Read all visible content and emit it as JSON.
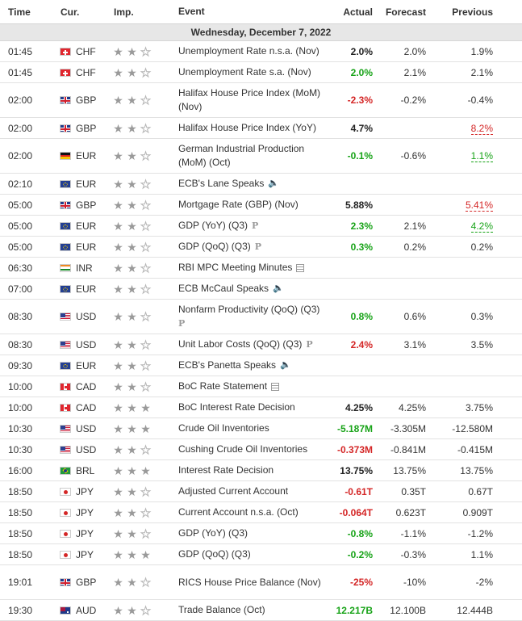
{
  "header": {
    "time": "Time",
    "currency": "Cur.",
    "importance": "Imp.",
    "event": "Event",
    "actual": "Actual",
    "forecast": "Forecast",
    "previous": "Previous"
  },
  "date_label": "Wednesday, December 7, 2022",
  "colors": {
    "positive": "#18a318",
    "negative": "#d42626",
    "date_band": "#e7e7e7"
  },
  "rows": [
    {
      "time": "01:45",
      "flag": "ch",
      "cur": "CHF",
      "stars": 2,
      "event": "Unemployment Rate n.s.a. (Nov)",
      "icon": "",
      "actual": "2.0%",
      "actual_color": "black",
      "forecast": "2.0%",
      "previous": "1.9%",
      "prev_style": "",
      "tall": false
    },
    {
      "time": "01:45",
      "flag": "ch",
      "cur": "CHF",
      "stars": 2,
      "event": "Unemployment Rate s.a. (Nov)",
      "icon": "",
      "actual": "2.0%",
      "actual_color": "green",
      "forecast": "2.1%",
      "previous": "2.1%",
      "prev_style": "",
      "tall": false
    },
    {
      "time": "02:00",
      "flag": "gb",
      "cur": "GBP",
      "stars": 2,
      "event": "Halifax House Price Index (MoM) (Nov)",
      "icon": "",
      "actual": "-2.3%",
      "actual_color": "red",
      "forecast": "-0.2%",
      "previous": "-0.4%",
      "prev_style": "",
      "tall": true
    },
    {
      "time": "02:00",
      "flag": "gb",
      "cur": "GBP",
      "stars": 2,
      "event": "Halifax House Price Index (YoY)",
      "icon": "",
      "actual": "4.7%",
      "actual_color": "black",
      "forecast": "",
      "previous": "8.2%",
      "prev_style": "red",
      "tall": false
    },
    {
      "time": "02:00",
      "flag": "de",
      "cur": "EUR",
      "stars": 2,
      "event": "German Industrial Production (MoM) (Oct)",
      "icon": "",
      "actual": "-0.1%",
      "actual_color": "green",
      "forecast": "-0.6%",
      "previous": "1.1%",
      "prev_style": "green",
      "tall": true
    },
    {
      "time": "02:10",
      "flag": "eu",
      "cur": "EUR",
      "stars": 2,
      "event": "ECB's Lane Speaks",
      "icon": "speaker",
      "actual": "",
      "actual_color": "black",
      "forecast": "",
      "previous": "",
      "prev_style": "",
      "tall": false
    },
    {
      "time": "05:00",
      "flag": "gb",
      "cur": "GBP",
      "stars": 2,
      "event": "Mortgage Rate (GBP) (Nov)",
      "icon": "",
      "actual": "5.88%",
      "actual_color": "black",
      "forecast": "",
      "previous": "5.41%",
      "prev_style": "red",
      "tall": false
    },
    {
      "time": "05:00",
      "flag": "eu",
      "cur": "EUR",
      "stars": 2,
      "event": "GDP (YoY) (Q3)",
      "icon": "p",
      "actual": "2.3%",
      "actual_color": "green",
      "forecast": "2.1%",
      "previous": "4.2%",
      "prev_style": "green",
      "tall": false
    },
    {
      "time": "05:00",
      "flag": "eu",
      "cur": "EUR",
      "stars": 2,
      "event": "GDP (QoQ) (Q3)",
      "icon": "p",
      "actual": "0.3%",
      "actual_color": "green",
      "forecast": "0.2%",
      "previous": "0.2%",
      "prev_style": "",
      "tall": false
    },
    {
      "time": "06:30",
      "flag": "in",
      "cur": "INR",
      "stars": 2,
      "event": "RBI MPC Meeting Minutes",
      "icon": "doc",
      "actual": "",
      "actual_color": "black",
      "forecast": "",
      "previous": "",
      "prev_style": "",
      "tall": false
    },
    {
      "time": "07:00",
      "flag": "eu",
      "cur": "EUR",
      "stars": 2,
      "event": "ECB McCaul Speaks",
      "icon": "speaker",
      "actual": "",
      "actual_color": "black",
      "forecast": "",
      "previous": "",
      "prev_style": "",
      "tall": false
    },
    {
      "time": "08:30",
      "flag": "us",
      "cur": "USD",
      "stars": 2,
      "event": "Nonfarm Productivity (QoQ) (Q3)",
      "icon": "p",
      "actual": "0.8%",
      "actual_color": "green",
      "forecast": "0.6%",
      "previous": "0.3%",
      "prev_style": "",
      "tall": true
    },
    {
      "time": "08:30",
      "flag": "us",
      "cur": "USD",
      "stars": 2,
      "event": "Unit Labor Costs (QoQ) (Q3)",
      "icon": "p",
      "actual": "2.4%",
      "actual_color": "red",
      "forecast": "3.1%",
      "previous": "3.5%",
      "prev_style": "",
      "tall": false
    },
    {
      "time": "09:30",
      "flag": "eu",
      "cur": "EUR",
      "stars": 2,
      "event": "ECB's Panetta Speaks",
      "icon": "speaker",
      "actual": "",
      "actual_color": "black",
      "forecast": "",
      "previous": "",
      "prev_style": "",
      "tall": false
    },
    {
      "time": "10:00",
      "flag": "ca",
      "cur": "CAD",
      "stars": 2,
      "event": "BoC Rate Statement",
      "icon": "doc",
      "actual": "",
      "actual_color": "black",
      "forecast": "",
      "previous": "",
      "prev_style": "",
      "tall": false
    },
    {
      "time": "10:00",
      "flag": "ca",
      "cur": "CAD",
      "stars": 3,
      "event": "BoC Interest Rate Decision",
      "icon": "",
      "actual": "4.25%",
      "actual_color": "black",
      "forecast": "4.25%",
      "previous": "3.75%",
      "prev_style": "",
      "tall": false
    },
    {
      "time": "10:30",
      "flag": "us",
      "cur": "USD",
      "stars": 3,
      "event": "Crude Oil Inventories",
      "icon": "",
      "actual": "-5.187M",
      "actual_color": "green",
      "forecast": "-3.305M",
      "previous": "-12.580M",
      "prev_style": "",
      "tall": false
    },
    {
      "time": "10:30",
      "flag": "us",
      "cur": "USD",
      "stars": 2,
      "event": "Cushing Crude Oil Inventories",
      "icon": "",
      "actual": "-0.373M",
      "actual_color": "red",
      "forecast": "-0.841M",
      "previous": "-0.415M",
      "prev_style": "",
      "tall": false
    },
    {
      "time": "16:00",
      "flag": "br",
      "cur": "BRL",
      "stars": 3,
      "event": "Interest Rate Decision",
      "icon": "",
      "actual": "13.75%",
      "actual_color": "black",
      "forecast": "13.75%",
      "previous": "13.75%",
      "prev_style": "",
      "tall": false
    },
    {
      "time": "18:50",
      "flag": "jp",
      "cur": "JPY",
      "stars": 2,
      "event": "Adjusted Current Account",
      "icon": "",
      "actual": "-0.61T",
      "actual_color": "red",
      "forecast": "0.35T",
      "previous": "0.67T",
      "prev_style": "",
      "tall": false
    },
    {
      "time": "18:50",
      "flag": "jp",
      "cur": "JPY",
      "stars": 2,
      "event": "Current Account n.s.a. (Oct)",
      "icon": "",
      "actual": "-0.064T",
      "actual_color": "red",
      "forecast": "0.623T",
      "previous": "0.909T",
      "prev_style": "",
      "tall": false
    },
    {
      "time": "18:50",
      "flag": "jp",
      "cur": "JPY",
      "stars": 2,
      "event": "GDP (YoY) (Q3)",
      "icon": "",
      "actual": "-0.8%",
      "actual_color": "green",
      "forecast": "-1.1%",
      "previous": "-1.2%",
      "prev_style": "",
      "tall": false
    },
    {
      "time": "18:50",
      "flag": "jp",
      "cur": "JPY",
      "stars": 3,
      "event": "GDP (QoQ) (Q3)",
      "icon": "",
      "actual": "-0.2%",
      "actual_color": "green",
      "forecast": "-0.3%",
      "previous": "1.1%",
      "prev_style": "",
      "tall": false
    },
    {
      "time": "19:01",
      "flag": "gb",
      "cur": "GBP",
      "stars": 2,
      "event": "RICS House Price Balance (Nov)",
      "icon": "",
      "actual": "-25%",
      "actual_color": "red",
      "forecast": "-10%",
      "previous": "-2%",
      "prev_style": "",
      "tall": true
    },
    {
      "time": "19:30",
      "flag": "au",
      "cur": "AUD",
      "stars": 2,
      "event": "Trade Balance (Oct)",
      "icon": "",
      "actual": "12.217B",
      "actual_color": "green",
      "forecast": "12.100B",
      "previous": "12.444B",
      "prev_style": "",
      "tall": false
    }
  ]
}
